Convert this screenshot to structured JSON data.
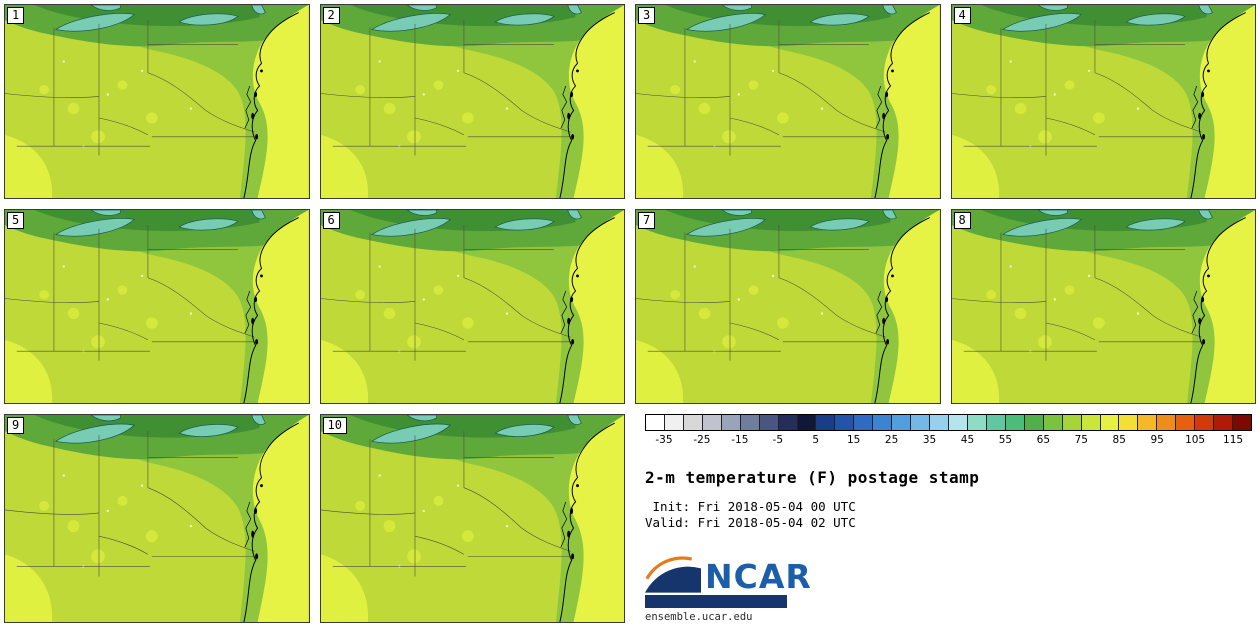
{
  "panels": [
    {
      "label": "1"
    },
    {
      "label": "2"
    },
    {
      "label": "3"
    },
    {
      "label": "4"
    },
    {
      "label": "5"
    },
    {
      "label": "6"
    },
    {
      "label": "7"
    },
    {
      "label": "8"
    },
    {
      "label": "9"
    },
    {
      "label": "10"
    }
  ],
  "colorbar": {
    "tick_labels": [
      "-35",
      "-25",
      "-15",
      "-5",
      "5",
      "15",
      "25",
      "35",
      "45",
      "55",
      "65",
      "75",
      "85",
      "95",
      "105",
      "115"
    ],
    "range_min": -40,
    "range_max": 120,
    "segment_step_f": 5,
    "segment_colors": [
      "#ffffff",
      "#f0f0f0",
      "#d8d8d8",
      "#bfc3ce",
      "#9aa3b8",
      "#707e9e",
      "#4a5680",
      "#252e58",
      "#111737",
      "#1b3c88",
      "#2354ac",
      "#2d6cc2",
      "#3b84d2",
      "#539ede",
      "#73b8e8",
      "#97d0ec",
      "#b5e4ea",
      "#8ddcc6",
      "#5fc8a0",
      "#4bbc7a",
      "#51b049",
      "#7bc23f",
      "#a7d437",
      "#cbe63b",
      "#e7f043",
      "#f3e037",
      "#f5b82b",
      "#ef8c1b",
      "#e56011",
      "#d33a0b",
      "#af1b07",
      "#7d0903"
    ]
  },
  "info": {
    "title": "2-m temperature (F) postage stamp",
    "init_line": " Init: Fri 2018-05-04 00 UTC",
    "valid_line": "Valid: Fri 2018-05-04 02 UTC",
    "logo_text": "NCAR",
    "site": "ensemble.ucar.edu",
    "logo_blue": "#1c5fa8",
    "logo_navy": "#16356c"
  },
  "chart_data": {
    "type": "heatmap",
    "title": "2-m temperature (F) postage stamp",
    "legend_units": "F",
    "legend_ticks": [
      -35,
      -25,
      -15,
      -5,
      5,
      15,
      25,
      35,
      45,
      55,
      65,
      75,
      85,
      95,
      105,
      115
    ],
    "ensemble_members": [
      1,
      2,
      3,
      4,
      5,
      6,
      7,
      8,
      9,
      10
    ],
    "dominant_map_values_f": [
      55,
      75
    ],
    "init_time": "Fri 2018-05-04 00 UTC",
    "valid_time": "Fri 2018-05-04 02 UTC"
  }
}
